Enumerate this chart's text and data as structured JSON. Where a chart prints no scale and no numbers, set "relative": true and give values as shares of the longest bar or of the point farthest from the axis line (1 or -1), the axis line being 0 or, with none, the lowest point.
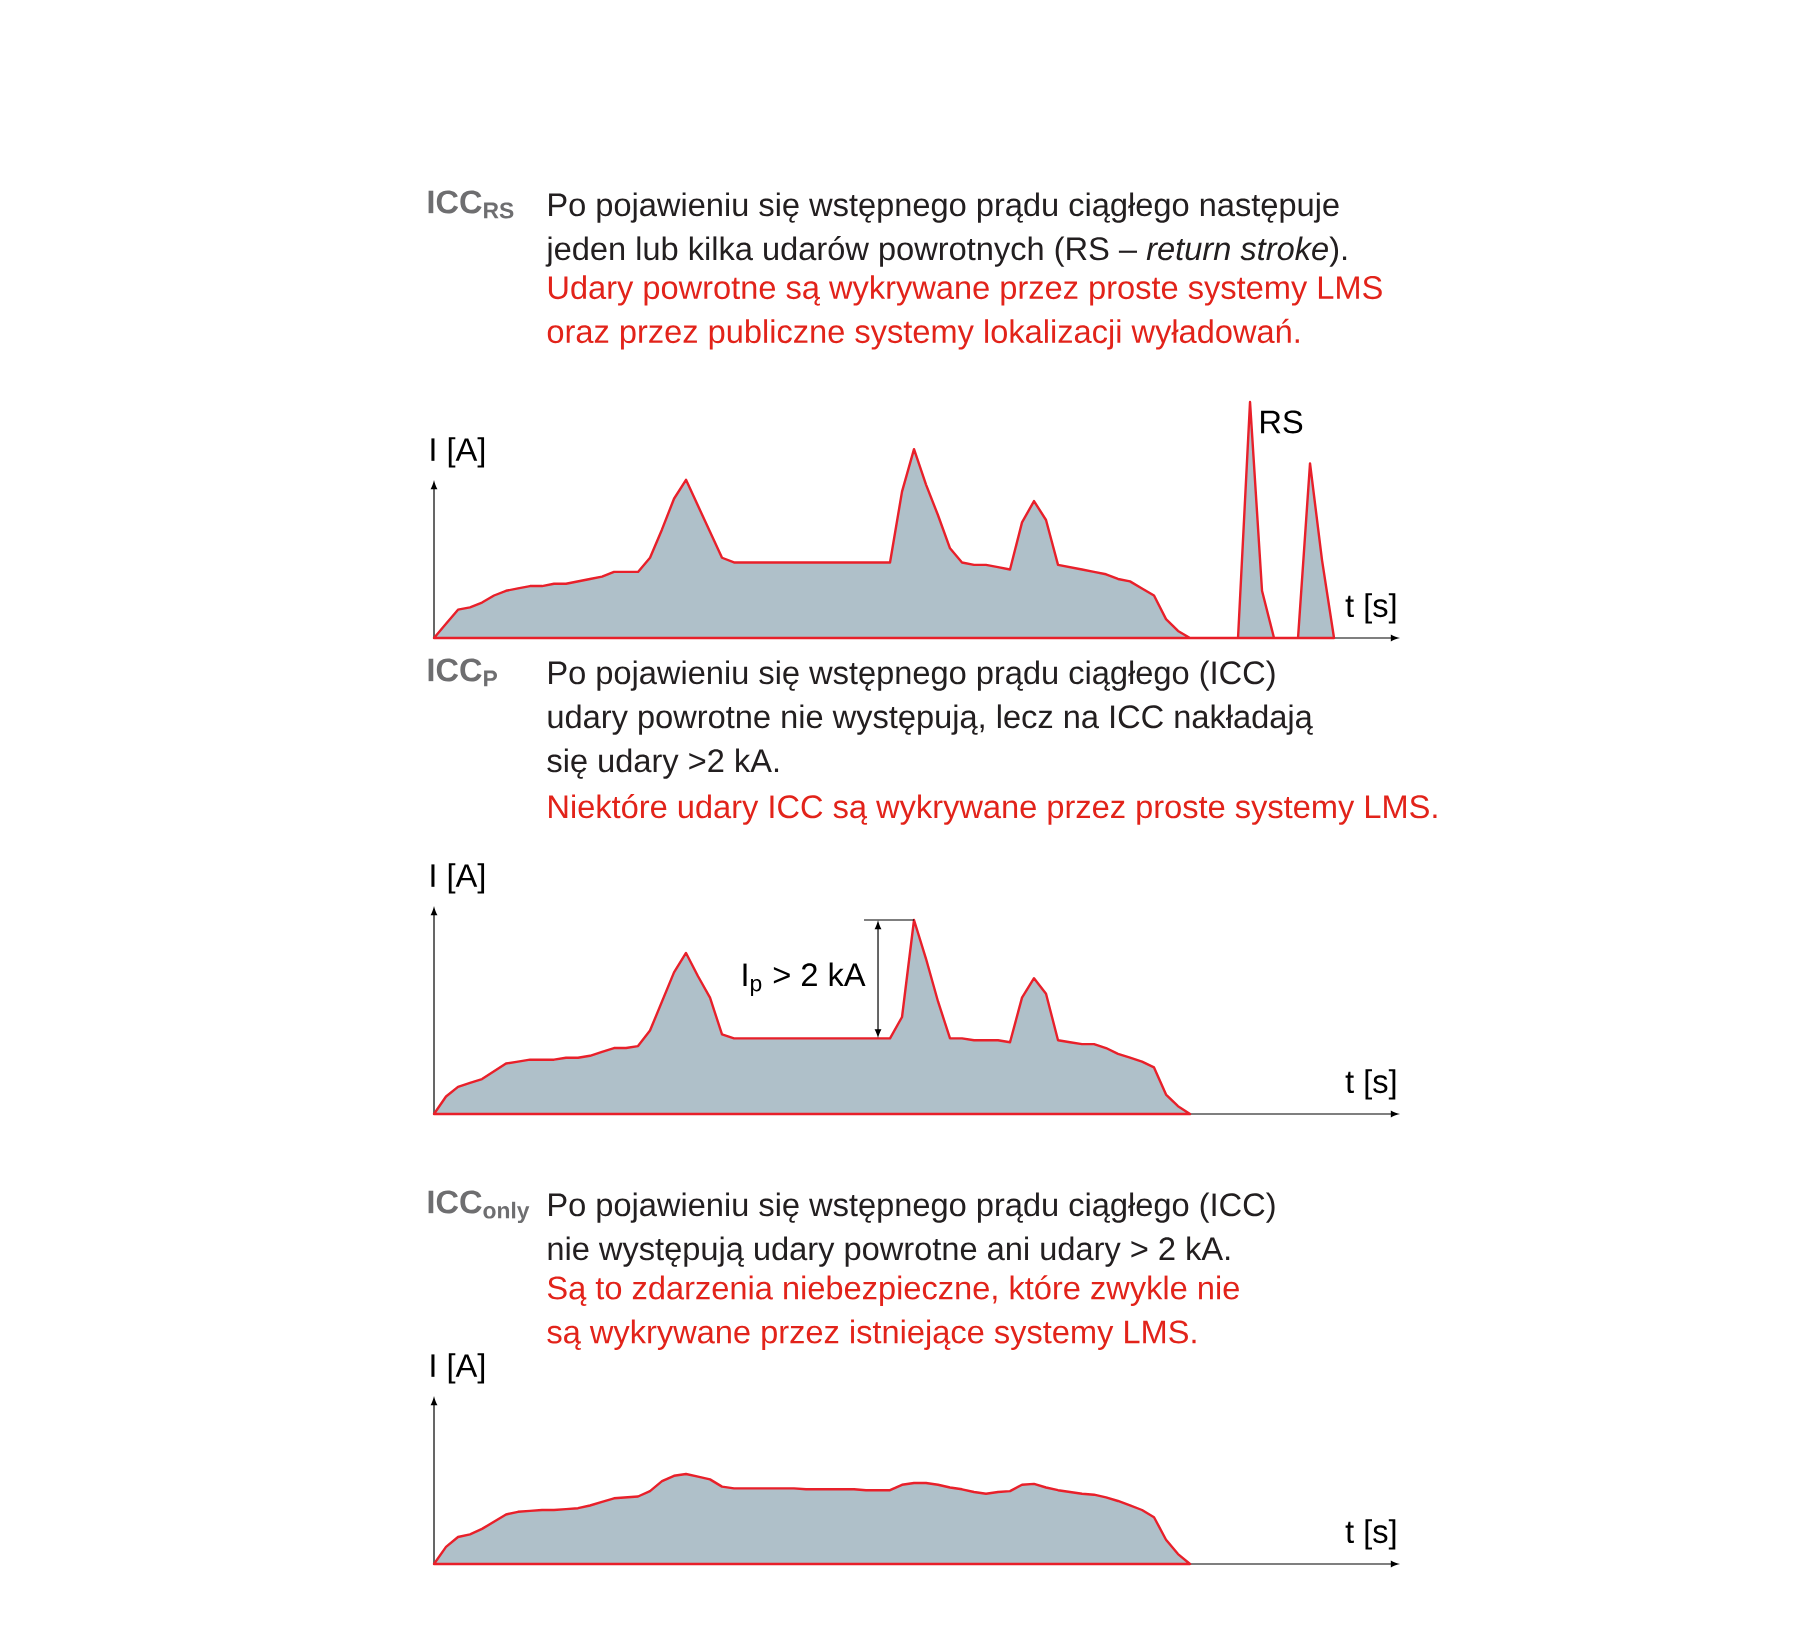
{
  "chart_data": [
    {
      "type": "area",
      "title": "ICC$_{RS}$",
      "subtitle": "Po pojawieniu się wstępnego prądu ciągłego następuje jeden lub kilka udarów powrotnych (RS – *return stroke*).",
      "annotations": [
        "Udary powrotne są wykrywane przez proste systemy LMS oraz przez publiczne systemy lokalizacji wyładowań.",
        "RS"
      ],
      "xlabel": "t [s]",
      "ylabel": "I [A]",
      "relative": true,
      "categories": [
        null,
        null,
        null,
        null,
        null,
        null,
        null,
        null,
        null,
        null,
        null,
        null,
        null,
        null,
        null,
        null,
        null,
        null,
        null,
        null,
        null,
        null,
        null,
        null,
        null,
        null,
        null,
        null,
        null,
        null,
        null,
        null,
        null,
        null,
        null,
        null,
        null,
        null,
        null,
        null,
        null,
        null,
        null,
        null,
        null,
        null,
        null,
        null,
        null,
        null,
        null,
        null,
        null,
        null,
        null,
        null,
        null,
        null,
        null,
        null,
        null,
        null,
        null,
        null,
        null,
        null,
        null,
        null,
        null,
        null,
        null,
        null,
        null,
        null,
        null,
        null
      ],
      "series": [
        {
          "color": "#afc0c9",
          "values": [
            0,
            0.06,
            0.12,
            0.13,
            0.15,
            0.18,
            0.2,
            0.21,
            0.22,
            0.22,
            0.23,
            0.23,
            0.24,
            0.25,
            0.26,
            0.28,
            0.28,
            0.28,
            0.34,
            0.46,
            0.59,
            0.67,
            0.56,
            0.45,
            0.34,
            0.32,
            0.32,
            0.32,
            0.32,
            0.32,
            0.32,
            0.32,
            0.32,
            0.32,
            0.32,
            0.32,
            0.32,
            0.32,
            0.32,
            0.62,
            0.8,
            0.65,
            0.52,
            0.38,
            0.32,
            0.31,
            0.31,
            0.3,
            0.29,
            0.49,
            0.58,
            0.5,
            0.31,
            0.3,
            0.29,
            0.28,
            0.27,
            0.25,
            0.24,
            0.21,
            0.18,
            0.08,
            0.03,
            0,
            0,
            0,
            0,
            0,
            1,
            0.2,
            0,
            0,
            0,
            0.74,
            0.33,
            0
          ]
        }
      ]
    },
    {
      "type": "area",
      "title": "ICC$_{P}$",
      "subtitle": "Po pojawieniu się wstępnego prądu ciągłego (ICC) udary powrotne nie występują, lecz na ICC nakładają się udary >2 kA.",
      "annotations": [
        "Niektóre udary ICC są wykrywane przez proste systemy LMS.",
        "I$_{p}$ > 2 kA"
      ],
      "xlabel": "t [s]",
      "ylabel": "I [A]",
      "relative": true,
      "categories": [
        null,
        null,
        null,
        null,
        null,
        null,
        null,
        null,
        null,
        null,
        null,
        null,
        null,
        null,
        null,
        null,
        null,
        null,
        null,
        null,
        null,
        null,
        null,
        null,
        null,
        null,
        null,
        null,
        null,
        null,
        null,
        null,
        null,
        null,
        null,
        null,
        null,
        null,
        null,
        null,
        null,
        null,
        null,
        null,
        null,
        null,
        null,
        null,
        null,
        null,
        null,
        null,
        null,
        null,
        null,
        null,
        null,
        null,
        null,
        null,
        null,
        null,
        null,
        null
      ],
      "series": [
        {
          "color": "#afc0c9",
          "values": [
            0,
            0.09,
            0.14,
            0.16,
            0.18,
            0.22,
            0.26,
            0.27,
            0.28,
            0.28,
            0.28,
            0.29,
            0.29,
            0.3,
            0.32,
            0.34,
            0.34,
            0.35,
            0.43,
            0.58,
            0.73,
            0.83,
            0.71,
            0.6,
            0.41,
            0.39,
            0.39,
            0.39,
            0.39,
            0.39,
            0.39,
            0.39,
            0.39,
            0.39,
            0.39,
            0.39,
            0.39,
            0.39,
            0.39,
            0.5,
            1,
            0.8,
            0.58,
            0.39,
            0.39,
            0.38,
            0.38,
            0.38,
            0.37,
            0.6,
            0.7,
            0.62,
            0.38,
            0.37,
            0.36,
            0.36,
            0.34,
            0.31,
            0.29,
            0.27,
            0.24,
            0.1,
            0.04,
            0
          ]
        }
      ]
    },
    {
      "type": "area",
      "title": "ICC$_{only}$",
      "subtitle": "Po pojawieniu się wstępnego prądu ciągłego (ICC) nie występują udary powrotne ani udary > 2 kA.",
      "annotations": [
        "Są to zdarzenia niebezpieczne, które zwykle nie są wykrywane przez istniejące systemy LMS."
      ],
      "xlabel": "t [s]",
      "ylabel": "I [A]",
      "relative": true,
      "categories": [
        null,
        null,
        null,
        null,
        null,
        null,
        null,
        null,
        null,
        null,
        null,
        null,
        null,
        null,
        null,
        null,
        null,
        null,
        null,
        null,
        null,
        null,
        null,
        null,
        null,
        null,
        null,
        null,
        null,
        null,
        null,
        null,
        null,
        null,
        null,
        null,
        null,
        null,
        null,
        null,
        null,
        null,
        null,
        null,
        null,
        null,
        null,
        null,
        null,
        null,
        null,
        null,
        null,
        null,
        null,
        null,
        null,
        null,
        null,
        null,
        null,
        null,
        null,
        null
      ],
      "series": [
        {
          "color": "#afc0c9",
          "values": [
            0,
            0.19,
            0.3,
            0.33,
            0.39,
            0.47,
            0.55,
            0.58,
            0.59,
            0.6,
            0.6,
            0.61,
            0.62,
            0.65,
            0.69,
            0.73,
            0.74,
            0.75,
            0.81,
            0.92,
            0.98,
            1,
            0.97,
            0.94,
            0.86,
            0.84,
            0.84,
            0.84,
            0.84,
            0.84,
            0.84,
            0.83,
            0.83,
            0.83,
            0.83,
            0.83,
            0.82,
            0.82,
            0.82,
            0.88,
            0.9,
            0.9,
            0.88,
            0.85,
            0.83,
            0.8,
            0.78,
            0.8,
            0.81,
            0.88,
            0.89,
            0.85,
            0.82,
            0.8,
            0.78,
            0.77,
            0.74,
            0.7,
            0.65,
            0.6,
            0.52,
            0.27,
            0.11,
            0
          ]
        }
      ]
    }
  ]
}
